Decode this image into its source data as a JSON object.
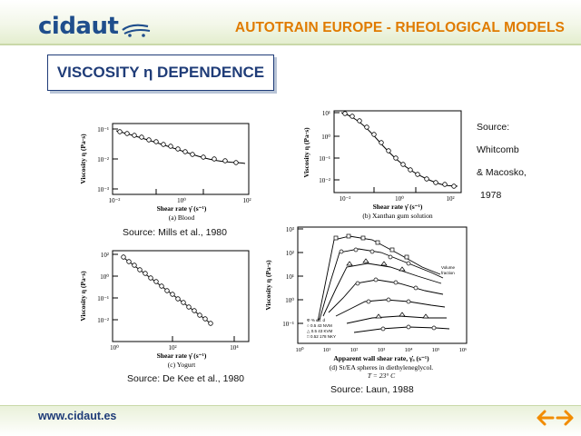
{
  "header": {
    "logo_text": "cidaut",
    "logo_icon": "car-swoosh-icon",
    "title": "AUTOTRAIN EUROPE - RHEOLOGICAL MODELS"
  },
  "section": {
    "title": "VISCOSITY η DEPENDENCE"
  },
  "figures": {
    "blood": {
      "ylabel": "Viscosity η (Pa·s)",
      "xlabel": "Shear rate γ̇  (s⁻¹)",
      "subcaption": "(a) Blood",
      "yticks": [
        "10⁻¹",
        "10⁻²",
        "10⁻³"
      ],
      "xticks": [
        "10⁻²",
        "10⁰",
        "10²"
      ],
      "source": "Source: Mills et al., 1980"
    },
    "xanthan": {
      "ylabel": "Viscosity η (Pa·s)",
      "xlabel": "Shear rate γ̇  (s⁻¹)",
      "subcaption": "(b) Xanthan gum solution",
      "yticks": [
        "10¹",
        "10⁰",
        "10⁻¹",
        "10⁻²"
      ],
      "xticks": [
        "10⁻²",
        "10⁰",
        "10²"
      ]
    },
    "yogurt": {
      "ylabel": "Viscosity η (Pa·s)",
      "xlabel": "Shear rate γ̇  (s⁻¹)",
      "subcaption": "(c) Yogurt",
      "yticks": [
        "10²",
        "10⁰",
        "10⁻¹",
        "10⁻²"
      ],
      "xticks": [
        "10⁰",
        "10²",
        "10⁴"
      ],
      "source": "Source: De Kee et al., 1980"
    },
    "spheres": {
      "ylabel": "Viscosity η (Pa·s)",
      "xlabel": "Apparent wall shear rate, γ̇ₐ (s⁻¹)",
      "subcaption": "(d) St/EA spheres in diethyleneglycol.",
      "subcaption2": "T = 23° C",
      "yticks": [
        "10³",
        "10²",
        "10¹",
        "10⁰",
        "10⁻¹"
      ],
      "xticks": [
        "10⁰",
        "10¹",
        "10²",
        "10³",
        "10⁴",
        "10⁵",
        "10⁶"
      ],
      "source": "Source: Laun, 1988"
    }
  },
  "side_source": [
    "Source:",
    "Whitcomb",
    "& Macosko,",
    "1978"
  ],
  "footer": {
    "url": "www.cidaut.es",
    "prev_icon": "arrow-left-icon",
    "next_icon": "arrow-right-icon"
  },
  "colors": {
    "brand_blue": "#1f4e8c",
    "title_orange": "#e07b00",
    "nav_orange": "#f28c00",
    "frame_navy": "#1f3c78"
  }
}
